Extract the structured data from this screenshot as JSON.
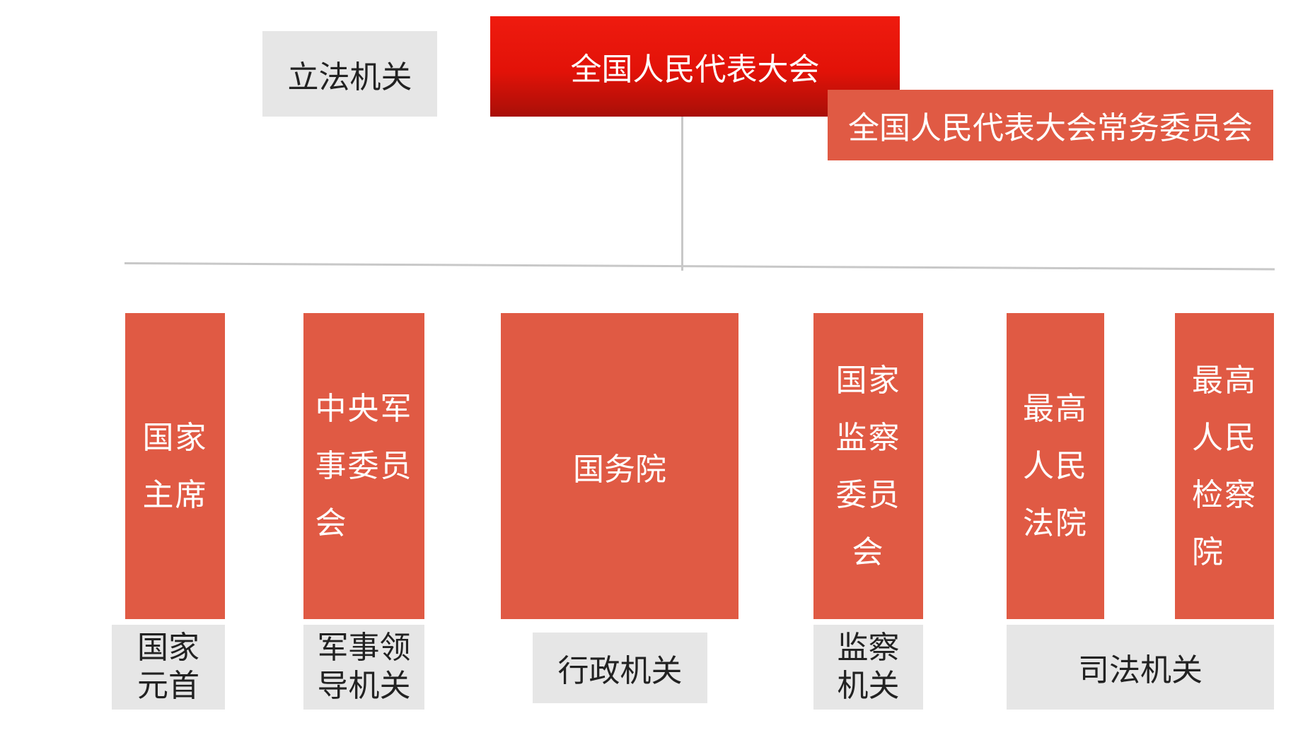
{
  "top": {
    "legislative_label": "立法机关",
    "npc": "全国人民代表大会",
    "npc_standing": "全国人民代表大会常务委员会"
  },
  "organs": [
    {
      "name": "国家\n主席",
      "category": "国家\n元首"
    },
    {
      "name": "中央军\n事委员\n会",
      "category": "军事领\n导机关"
    },
    {
      "name": "国务院",
      "category": "行政机关"
    },
    {
      "name": "国家\n监察\n委员\n会",
      "category": "监察\n机关"
    },
    {
      "name": "最高\n人民\n法院",
      "category": "司法机关"
    },
    {
      "name": "最高\n人民\n检察\n院",
      "category": ""
    }
  ],
  "colors": {
    "box_red": "#e05a44",
    "npc_red": "#e21208",
    "label_grey": "#e6e6e6",
    "line_grey": "#c8c8c8"
  }
}
